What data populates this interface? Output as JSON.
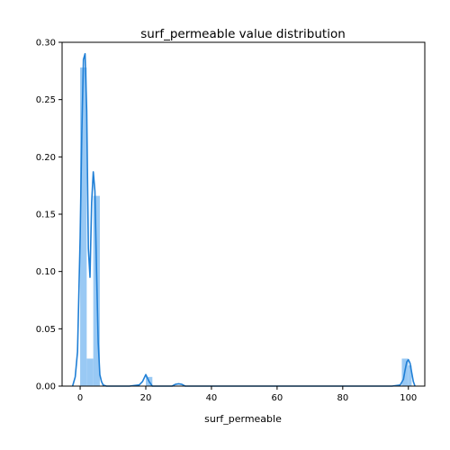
{
  "chart_data": {
    "type": "bar",
    "title": "surf_permeable value distribution",
    "xlabel": "surf_permeable",
    "ylabel": "",
    "xlim": [
      -5.5,
      105
    ],
    "ylim": [
      0,
      0.3
    ],
    "xticks": [
      0,
      20,
      40,
      60,
      80,
      100
    ],
    "yticks": [
      0.0,
      0.05,
      0.1,
      0.15,
      0.2,
      0.25,
      0.3
    ],
    "xtick_labels": [
      "0",
      "20",
      "40",
      "60",
      "80",
      "100"
    ],
    "ytick_labels": [
      "0.00",
      "0.05",
      "0.10",
      "0.15",
      "0.20",
      "0.25",
      "0.30"
    ],
    "grid": false,
    "legend": "none",
    "colors": {
      "histogram": "#99c9f4",
      "kde": "#1f7fd6",
      "axes": "#000000"
    },
    "histogram": {
      "bin_width": 2,
      "bins": [
        {
          "x0": 0.0,
          "x1": 2.0,
          "value": 0.278
        },
        {
          "x0": 2.0,
          "x1": 4.0,
          "value": 0.024
        },
        {
          "x0": 4.0,
          "x1": 6.0,
          "value": 0.166
        },
        {
          "x0": 20.0,
          "x1": 22.0,
          "value": 0.008
        },
        {
          "x0": 98.0,
          "x1": 100.0,
          "value": 0.024
        },
        {
          "x0": 100.0,
          "x1": 101.0,
          "value": 0.018
        }
      ]
    },
    "kde": {
      "x": [
        -2.3,
        -1.5,
        -0.8,
        0.0,
        0.5,
        1.0,
        1.5,
        2.0,
        2.5,
        3.0,
        3.5,
        4.0,
        4.5,
        5.0,
        5.5,
        6.0,
        6.5,
        7.0,
        8.0,
        10.0,
        15.0,
        18.0,
        19.0,
        20.0,
        21.0,
        22.0,
        25.0,
        28.0,
        29.0,
        30.0,
        31.0,
        32.0,
        40.0,
        60.0,
        80.0,
        95.0,
        97.5,
        98.5,
        99.0,
        99.5,
        100.0,
        100.5,
        101.0,
        101.5,
        102.0
      ],
      "y": [
        0.0,
        0.008,
        0.03,
        0.13,
        0.22,
        0.285,
        0.29,
        0.24,
        0.12,
        0.095,
        0.16,
        0.187,
        0.17,
        0.1,
        0.038,
        0.01,
        0.004,
        0.001,
        0.0,
        0.0,
        0.0,
        0.001,
        0.004,
        0.01,
        0.004,
        0.0,
        0.0,
        0.0,
        0.0015,
        0.002,
        0.0015,
        0.0,
        0.0,
        0.0,
        0.0,
        0.0,
        0.001,
        0.006,
        0.014,
        0.021,
        0.023,
        0.02,
        0.012,
        0.004,
        0.0
      ]
    }
  }
}
